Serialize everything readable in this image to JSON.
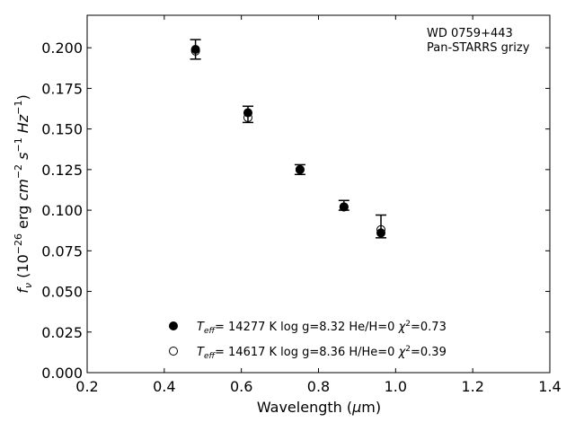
{
  "chart_data": {
    "type": "scatter",
    "xlabel": "Wavelength (μm)",
    "xlabel_parts": [
      "Wavelength (",
      "μ",
      "m)"
    ],
    "ylabel_parts": [
      "f",
      "ν",
      " (10",
      "−26",
      " erg ",
      "cm",
      "−2",
      " ",
      "s",
      "−1",
      " ",
      "Hz",
      "−1",
      ")"
    ],
    "xlim": [
      0.2,
      1.4
    ],
    "ylim": [
      0.0,
      0.22
    ],
    "xticks": [
      0.2,
      0.4,
      0.6,
      0.8,
      1.0,
      1.2,
      1.4
    ],
    "xtick_labels": [
      "0.2",
      "0.4",
      "0.6",
      "0.8",
      "1.0",
      "1.2",
      "1.4"
    ],
    "yticks": [
      0.0,
      0.025,
      0.05,
      0.075,
      0.1,
      0.125,
      0.15,
      0.175,
      0.2
    ],
    "ytick_labels": [
      "0.000",
      "0.025",
      "0.050",
      "0.075",
      "0.100",
      "0.125",
      "0.150",
      "0.175",
      "0.200"
    ],
    "grid": false,
    "annotation": [
      "WD 0759+443",
      "Pan-STARRS grizy"
    ],
    "observed": {
      "x": [
        0.481,
        0.617,
        0.752,
        0.866,
        0.962
      ],
      "y": [
        0.199,
        0.159,
        0.125,
        0.103,
        0.09
      ],
      "yerr": [
        0.006,
        0.005,
        0.003,
        0.003,
        0.007
      ]
    },
    "series": [
      {
        "name": "T_eff= 14277 K  log g=8.32  He/H=0  χ²=0.73",
        "name_parts": [
          "T",
          "eff",
          "= 14277 K  log g=8.32  He/H=0  ",
          "χ",
          "2",
          "=0.73"
        ],
        "marker": "filled-circle",
        "x": [
          0.481,
          0.617,
          0.752,
          0.866,
          0.962
        ],
        "y": [
          0.199,
          0.16,
          0.125,
          0.102,
          0.086
        ]
      },
      {
        "name": "T_eff= 14617 K  log g=8.36  H/He=0  χ²=0.39",
        "name_parts": [
          "T",
          "eff",
          "= 14617 K  log g=8.36  H/He=0  ",
          "χ",
          "2",
          "=0.39"
        ],
        "marker": "open-circle",
        "x": [
          0.481,
          0.617,
          0.752,
          0.866,
          0.962
        ],
        "y": [
          0.198,
          0.157,
          0.125,
          0.102,
          0.088
        ]
      }
    ],
    "legend_position": "lower-center"
  }
}
